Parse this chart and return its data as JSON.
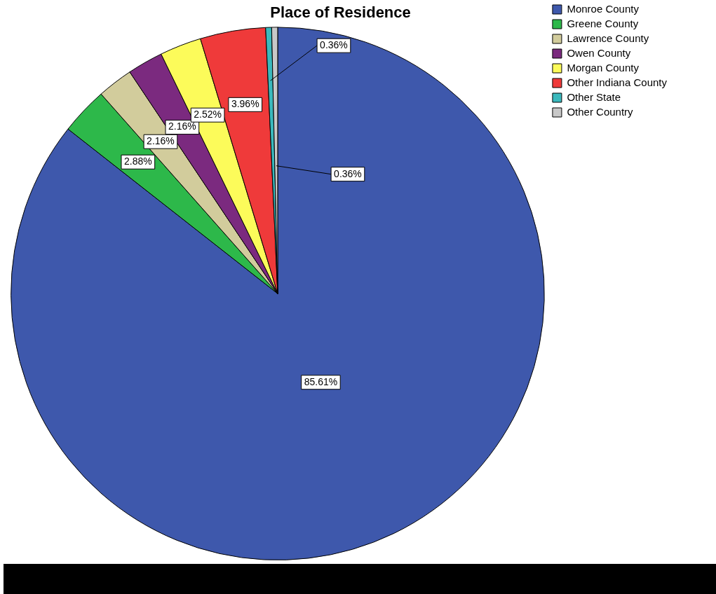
{
  "chart_data": {
    "type": "pie",
    "title": "Place of Residence",
    "categories": [
      "Monroe County",
      "Greene County",
      "Lawrence County",
      "Owen County",
      "Morgan County",
      "Other Indiana County",
      "Other State",
      "Other Country"
    ],
    "values": [
      85.61,
      2.88,
      2.16,
      2.16,
      2.52,
      3.96,
      0.36,
      0.36
    ],
    "value_labels": [
      "85.61%",
      "2.88%",
      "2.16%",
      "2.16%",
      "2.52%",
      "3.96%",
      "0.36%",
      "0.36%"
    ],
    "colors": [
      "#3e58ac",
      "#2db84a",
      "#d2cc9c",
      "#7b2a7f",
      "#fcfb5a",
      "#ef3a3a",
      "#3bb9bd",
      "#c8c8c8"
    ],
    "legend": "top right"
  }
}
